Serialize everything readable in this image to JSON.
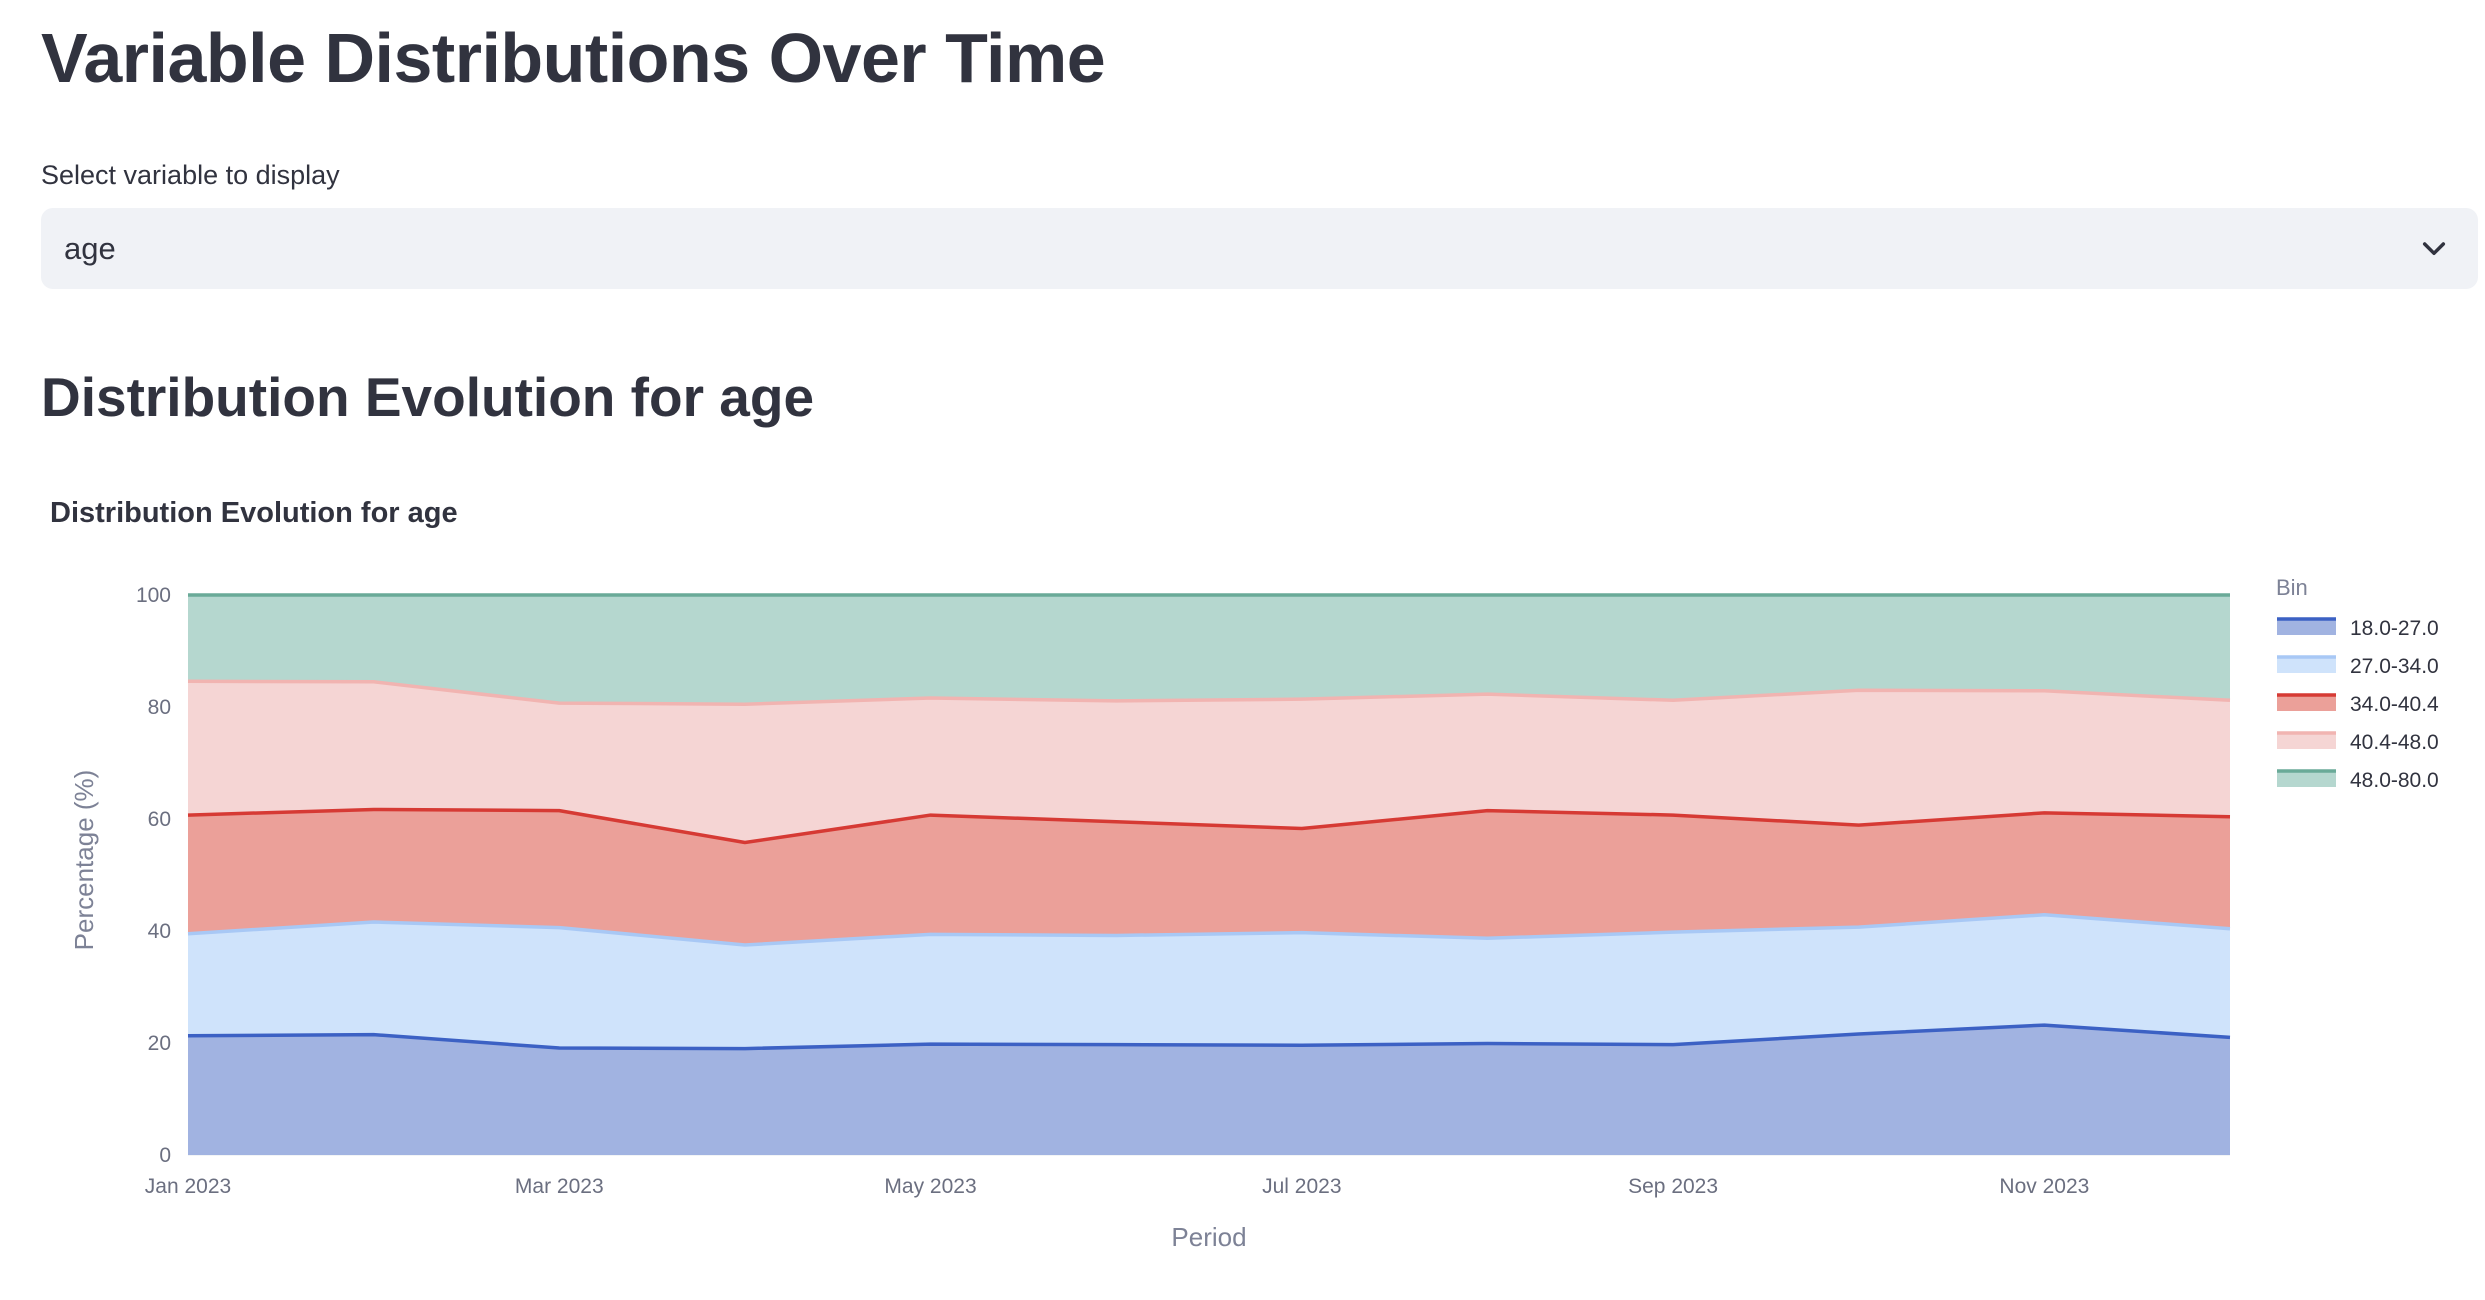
{
  "page": {
    "title": "Variable Distributions Over Time",
    "select_label": "Select variable to display",
    "select_value": "age",
    "section_title": "Distribution Evolution for age"
  },
  "chart_data": {
    "type": "area",
    "stacked": true,
    "title": "Distribution Evolution for age",
    "xlabel": "Period",
    "ylabel": "Percentage (%)",
    "ylim": [
      0,
      100
    ],
    "yticks": [
      0,
      20,
      40,
      60,
      80,
      100
    ],
    "x": [
      "2023-01",
      "2023-02",
      "2023-03",
      "2023-04",
      "2023-05",
      "2023-06",
      "2023-07",
      "2023-08",
      "2023-09",
      "2023-10",
      "2023-11",
      "2023-12"
    ],
    "x_tick_labels": [
      "Jan 2023",
      "Mar 2023",
      "May 2023",
      "Jul 2023",
      "Sep 2023",
      "Nov 2023"
    ],
    "legend_title": "Bin",
    "legend_position": "right",
    "grid": true,
    "series": [
      {
        "name": "18.0-27.0",
        "color": "#3c61c4",
        "fill": "#a1b3e1",
        "values": [
          21.3,
          21.5,
          19.1,
          19.0,
          19.8,
          19.7,
          19.6,
          19.9,
          19.7,
          21.6,
          23.2,
          21.0
        ]
      },
      {
        "name": "27.0-34.0",
        "color": "#a8c8f5",
        "fill": "#cfe3fb",
        "values": [
          18.2,
          20.1,
          21.5,
          18.5,
          19.6,
          19.5,
          20.1,
          18.8,
          20.1,
          19.1,
          19.7,
          19.4
        ]
      },
      {
        "name": "34.0-40.4",
        "color": "#d63a34",
        "fill": "#eba099",
        "values": [
          21.2,
          20.1,
          20.9,
          18.3,
          21.3,
          20.3,
          18.6,
          22.8,
          20.9,
          18.2,
          18.2,
          20.0
        ]
      },
      {
        "name": "40.4-48.0",
        "color": "#f1b4b1",
        "fill": "#f5d5d4",
        "values": [
          23.9,
          22.8,
          19.2,
          24.7,
          20.9,
          21.6,
          23.1,
          20.8,
          20.5,
          24.1,
          21.8,
          20.8
        ]
      },
      {
        "name": "48.0-80.0",
        "color": "#6aaa98",
        "fill": "#b5d7cf",
        "values": [
          15.4,
          15.5,
          19.3,
          19.5,
          18.4,
          18.9,
          18.6,
          17.7,
          18.8,
          17.0,
          17.1,
          18.8
        ]
      }
    ]
  }
}
